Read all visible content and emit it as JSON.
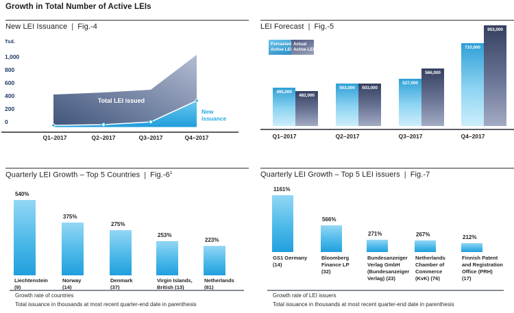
{
  "page": {
    "title": "Growth in Total Number of Active LEIs",
    "separator": "|"
  },
  "colors": {
    "accent_cyan": "#29a8e0",
    "navy_text": "#1f3966",
    "slate_dark": "#39466b",
    "slate_light": "#aab3cc",
    "text_dark": "#231f20"
  },
  "chart_data": [
    {
      "id": "fig-4",
      "type": "area",
      "title": "New LEI Issuance",
      "fig": "Fig.-4",
      "unit": "Tsd.",
      "x": [
        "Q1–2017",
        "Q2–2017",
        "Q3–2017",
        "Q4–2017"
      ],
      "y_ticks": [
        "1,000",
        "800",
        "600",
        "400",
        "200",
        "0"
      ],
      "ylim": [
        0,
        1000
      ],
      "grid": false,
      "series": [
        {
          "name": "Total LEI issued",
          "values_tsd": [
            420,
            450,
            500,
            1030
          ]
        },
        {
          "name": "New issuance",
          "name_display": "New\nissuance",
          "values_tsd": [
            20,
            30,
            50,
            330
          ]
        }
      ],
      "values_note": "series values estimated visually from axis"
    },
    {
      "id": "fig-5",
      "type": "bar",
      "title": "LEI Forecast",
      "fig": "Fig.-5",
      "categories": [
        "Q1–2017",
        "Q2–2017",
        "Q3–2017",
        "Q4–2017"
      ],
      "legend": [
        {
          "name": "Forcasted Active LEI",
          "display": "Forcasted\nActive LEI"
        },
        {
          "name": "Actual Active LEI",
          "display": "Actual\nActive LEI"
        }
      ],
      "series": [
        {
          "name": "Forcasted Active LEI",
          "values": [
            495000,
            503000,
            527000,
            710000
          ],
          "labels": [
            "495,000",
            "503,000",
            "527,000",
            "710,000"
          ]
        },
        {
          "name": "Actual Active LEI",
          "values": [
            482000,
            503000,
            566000,
            953000
          ],
          "labels": [
            "482,000",
            "503,000",
            "566,000",
            "953,000"
          ]
        }
      ]
    },
    {
      "id": "fig-6",
      "type": "bar",
      "title": "Quarterly LEI Growth – Top 5 Countries",
      "fig": "Fig.-6",
      "fig_sup": "1",
      "values_pct": [
        540,
        375,
        275,
        253,
        223
      ],
      "labels": [
        "540%",
        "375%",
        "275%",
        "253%",
        "223%"
      ],
      "categories": [
        [
          "Liechtenstein",
          "(9)"
        ],
        [
          "Norway",
          "(14)"
        ],
        [
          "Denmark",
          "(37)"
        ],
        [
          "Virgin Islands,",
          "British (13)"
        ],
        [
          "Netherlands",
          "(81)"
        ]
      ],
      "footnotes": [
        "Growth rate of countries",
        "Total issuance in thousands at most recent quarter-end date in parenthesis"
      ]
    },
    {
      "id": "fig-7",
      "type": "bar",
      "title": "Quarterly LEI Growth – Top 5 LEI issuers",
      "fig": "Fig.-7",
      "values_pct": [
        1161,
        566,
        271,
        267,
        212
      ],
      "labels": [
        "1161%",
        "566%",
        "271%",
        "267%",
        "212%"
      ],
      "categories": [
        [
          "GS1 Germany",
          "(14)"
        ],
        [
          "Bloomberg",
          "Finance LP",
          "(32)"
        ],
        [
          "Bundesanzeiger",
          "Verlag GmbH",
          "(Bundesanzeiger",
          "Verlag) (23)"
        ],
        [
          "Netherlands",
          "Chamber of",
          "Commerce",
          "(KvK) (76)"
        ],
        [
          "Finnish Patent",
          "and Registration",
          "Office (PRH)",
          "(17)"
        ]
      ],
      "footnotes": [
        "Growth rate of LEI issuers",
        "Total issuance in thousands at most recent quarter-end date in parenthesis"
      ]
    }
  ]
}
